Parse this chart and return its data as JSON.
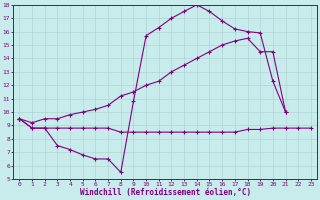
{
  "title": "",
  "xlabel": "Windchill (Refroidissement éolien,°C)",
  "ylabel": "",
  "bg_color": "#c8ecec",
  "grid_color": "#b0d4d4",
  "line_color": "#800080",
  "xlim": [
    -0.5,
    23.5
  ],
  "ylim": [
    5,
    18
  ],
  "xticks": [
    0,
    1,
    2,
    3,
    4,
    5,
    6,
    7,
    8,
    9,
    10,
    11,
    12,
    13,
    14,
    15,
    16,
    17,
    18,
    19,
    20,
    21,
    22,
    23
  ],
  "yticks": [
    5,
    6,
    7,
    8,
    9,
    10,
    11,
    12,
    13,
    14,
    15,
    16,
    17,
    18
  ],
  "line1_x": [
    0,
    1,
    2,
    3,
    4,
    5,
    6,
    7,
    8,
    9,
    10,
    11,
    12,
    13,
    14,
    15,
    16,
    17,
    18,
    19,
    20,
    21,
    22,
    23
  ],
  "line1_y": [
    9.5,
    8.8,
    8.8,
    8.8,
    8.8,
    8.8,
    8.8,
    8.8,
    8.5,
    8.5,
    8.5,
    8.5,
    8.5,
    8.5,
    8.5,
    8.5,
    8.5,
    8.5,
    8.7,
    8.7,
    8.8,
    8.8,
    8.8,
    8.8
  ],
  "line2_x": [
    0,
    1,
    2,
    3,
    4,
    5,
    6,
    7,
    8,
    9,
    10,
    11,
    12,
    13,
    14,
    15,
    16,
    17,
    18,
    19,
    20,
    21
  ],
  "line2_y": [
    9.5,
    8.8,
    8.8,
    7.5,
    7.2,
    6.8,
    6.5,
    6.5,
    5.5,
    10.8,
    15.7,
    16.3,
    17.0,
    17.5,
    18.0,
    17.5,
    16.8,
    16.2,
    16.0,
    15.9,
    12.3,
    10.0
  ],
  "line3_x": [
    0,
    1,
    2,
    3,
    4,
    5,
    6,
    7,
    8,
    9,
    10,
    11,
    12,
    13,
    14,
    15,
    16,
    17,
    18,
    19,
    20,
    21,
    22,
    23
  ],
  "line3_y": [
    9.5,
    9.2,
    9.5,
    9.5,
    9.8,
    10.0,
    10.2,
    10.5,
    11.2,
    11.5,
    12.0,
    12.3,
    13.0,
    13.5,
    14.0,
    14.5,
    15.0,
    15.3,
    15.5,
    14.5,
    14.5,
    10.0,
    null,
    null
  ]
}
